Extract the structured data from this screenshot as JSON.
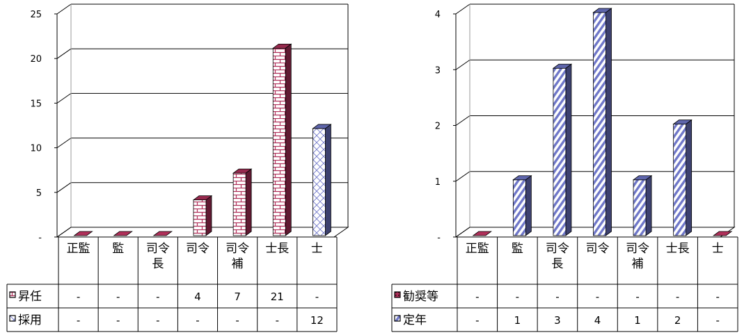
{
  "chart_data": [
    {
      "type": "bar",
      "categories": [
        "正監",
        "監",
        "司令長",
        "司令",
        "司令補",
        "士長",
        "士"
      ],
      "category_labels": [
        [
          "正監"
        ],
        [
          "監"
        ],
        [
          "司令",
          "長"
        ],
        [
          "司令"
        ],
        [
          "司令",
          "補"
        ],
        [
          "士長"
        ],
        [
          "士"
        ]
      ],
      "yticks": [
        "-",
        "5",
        "10",
        "15",
        "20",
        "25"
      ],
      "ylim": [
        0,
        25
      ],
      "series": [
        {
          "name": "昇任",
          "values": [
            0,
            0,
            0,
            4,
            7,
            21,
            0
          ],
          "labels": [
            "-",
            "-",
            "-",
            "4",
            "7",
            "21",
            "-"
          ],
          "pattern": "brick",
          "color": "#b0305a"
        },
        {
          "name": "採用",
          "values": [
            0,
            0,
            0,
            0,
            0,
            0,
            12
          ],
          "labels": [
            "-",
            "-",
            "-",
            "-",
            "-",
            "-",
            "12"
          ],
          "pattern": "cross",
          "color": "#6f77c9"
        }
      ]
    },
    {
      "type": "bar",
      "categories": [
        "正監",
        "監",
        "司令長",
        "司令",
        "司令補",
        "士長",
        "士"
      ],
      "category_labels": [
        [
          "正監"
        ],
        [
          "監"
        ],
        [
          "司令",
          "長"
        ],
        [
          "司令"
        ],
        [
          "司令",
          "補"
        ],
        [
          "士長"
        ],
        [
          "士"
        ]
      ],
      "yticks": [
        "-",
        "1",
        "2",
        "3",
        "4"
      ],
      "ylim": [
        0,
        4
      ],
      "series": [
        {
          "name": "勧奨等",
          "values": [
            0,
            0,
            0,
            0,
            0,
            0,
            0
          ],
          "labels": [
            "-",
            "-",
            "-",
            "-",
            "-",
            "-",
            "-"
          ],
          "pattern": "dots",
          "color": "#b0305a"
        },
        {
          "name": "定年",
          "values": [
            0,
            1,
            3,
            4,
            1,
            2,
            0
          ],
          "labels": [
            "-",
            "1",
            "3",
            "4",
            "1",
            "2",
            "-"
          ],
          "pattern": "diagonal",
          "color": "#6f77c9"
        }
      ]
    }
  ]
}
